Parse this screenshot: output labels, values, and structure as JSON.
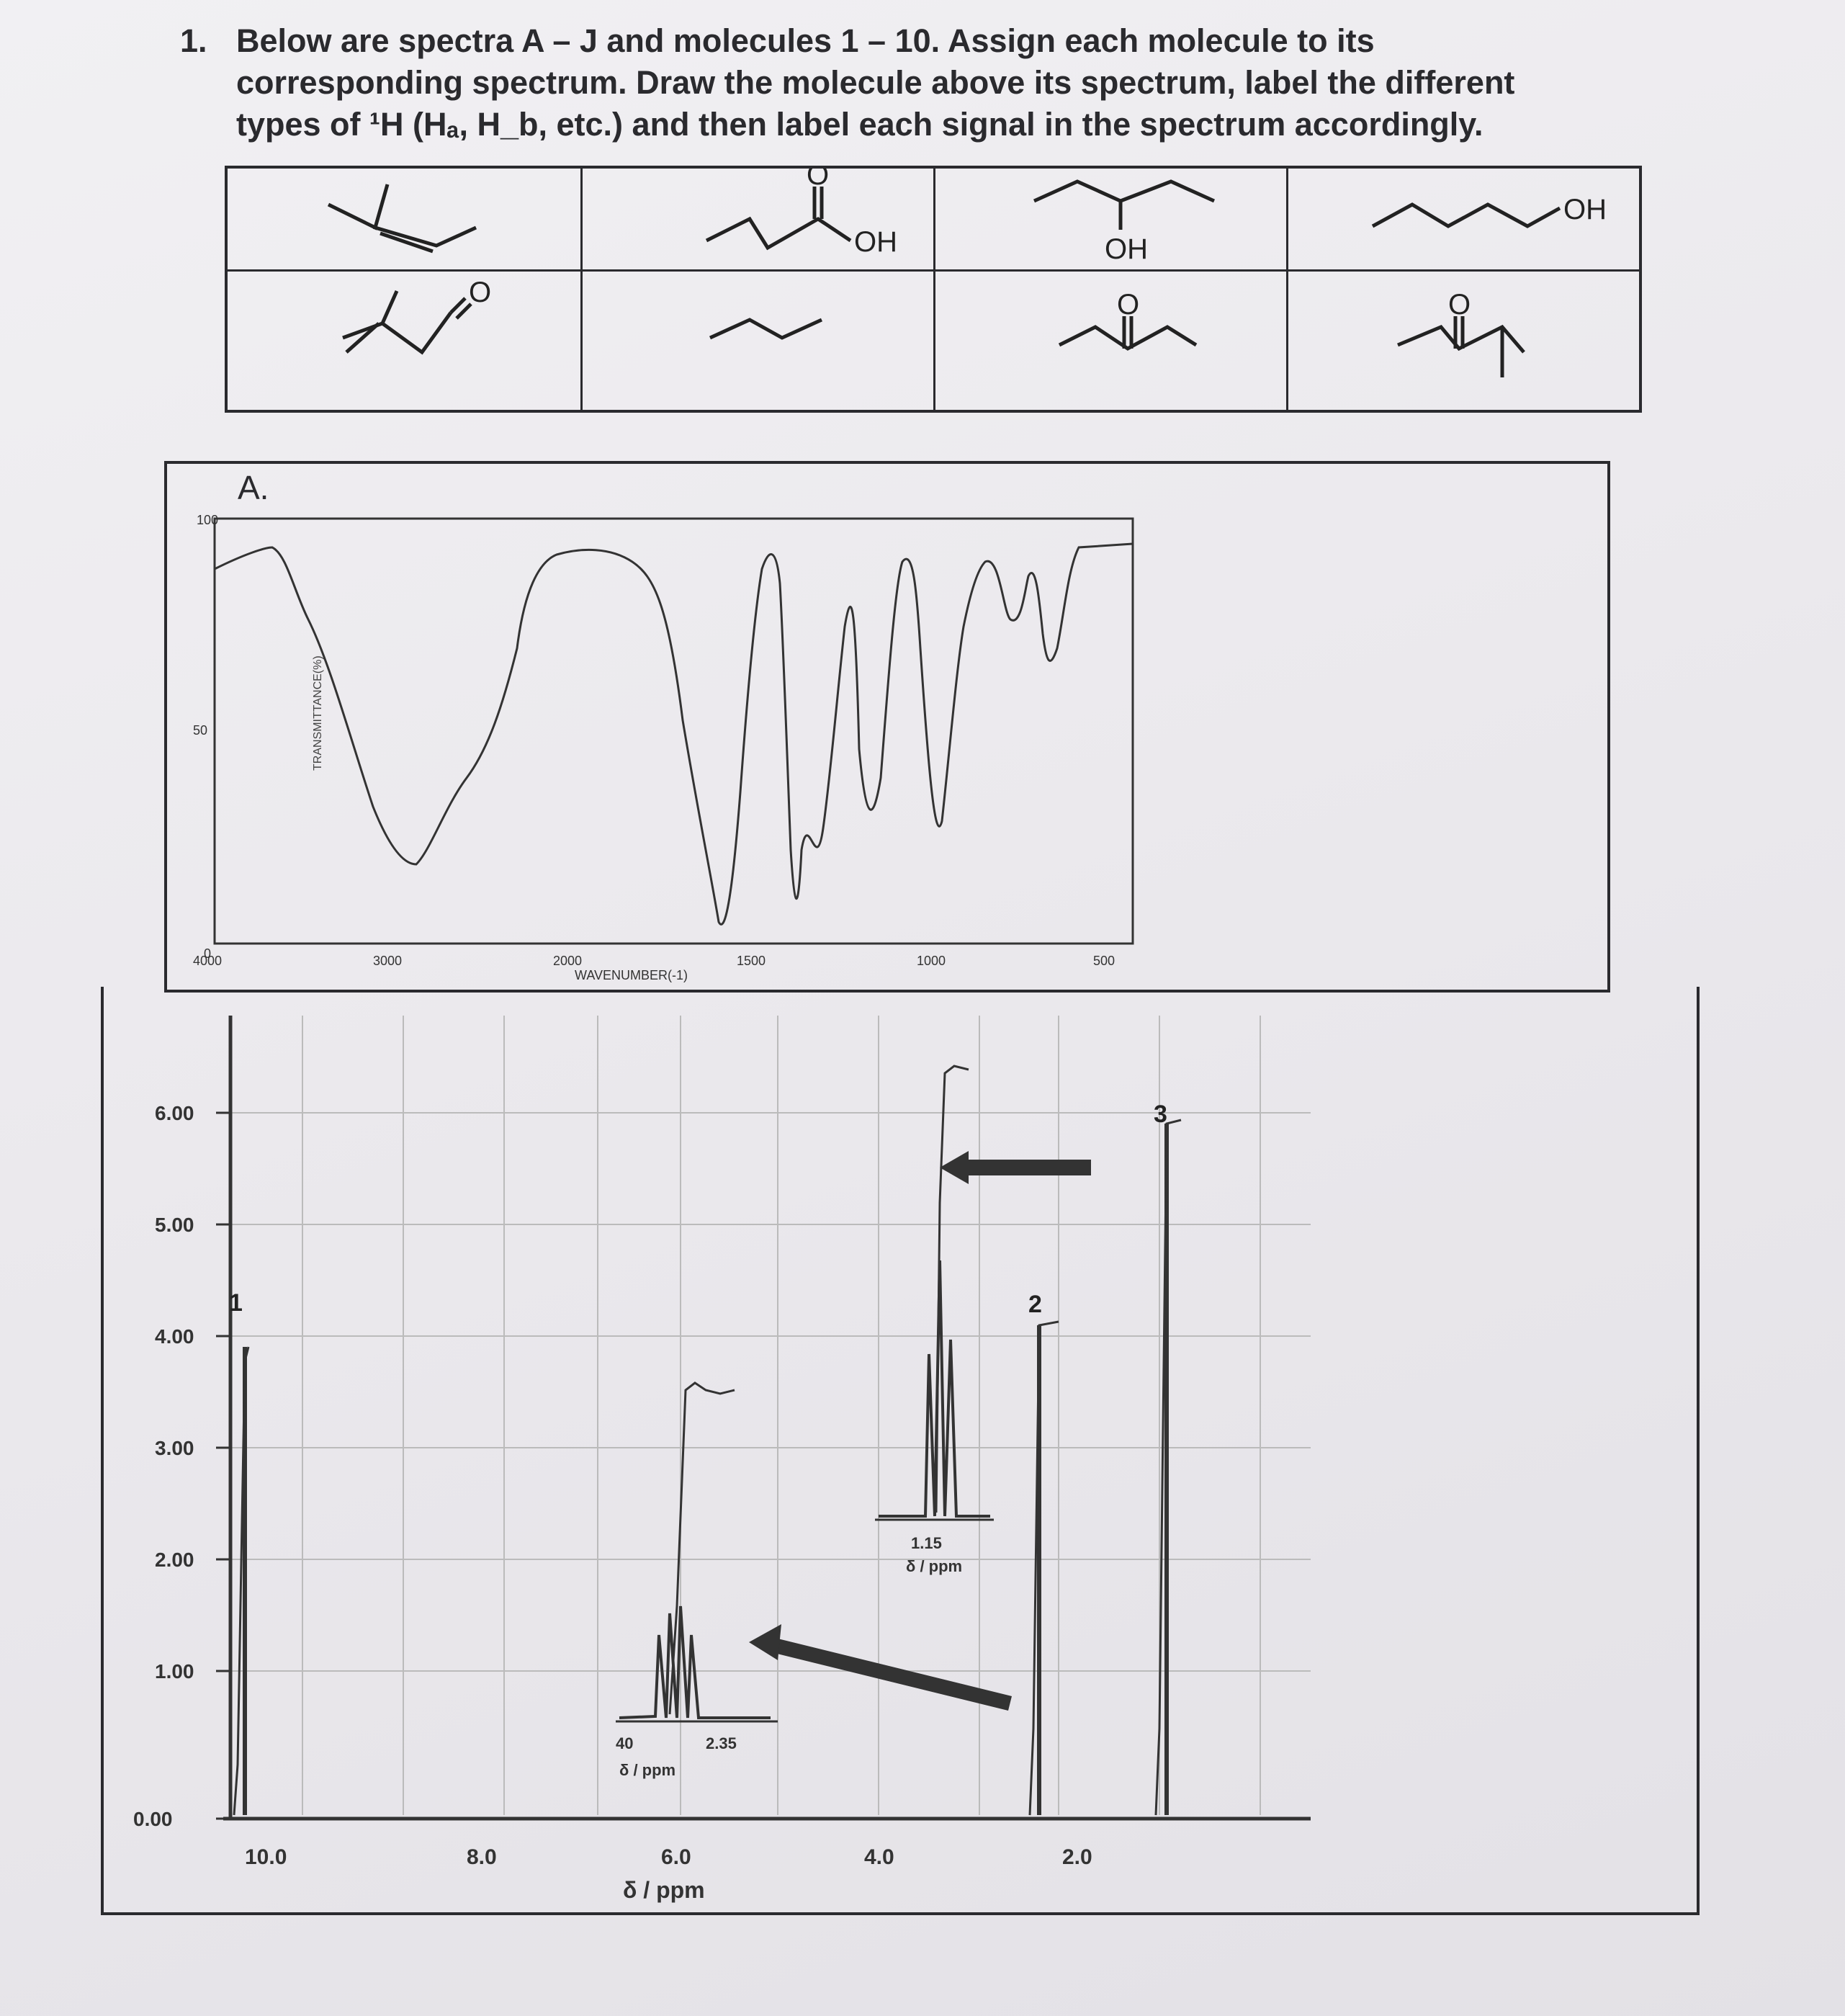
{
  "question": {
    "number": "1.",
    "text": "Below are spectra A – J and molecules 1 – 10. Assign each molecule to its corresponding spectrum. Draw the molecule above its spectrum, label the different types of ¹H (Hₐ, H_b, etc.) and then label each signal in the spectrum accordingly."
  },
  "molecules": {
    "oh_label_1": "OH",
    "oh_label_2": "OH",
    "oh_label_3": "OH",
    "o_label_1": "O",
    "o_label_2": "O",
    "o_label_3": "O",
    "o_label_4": "O"
  },
  "spectrum": {
    "label": "A.",
    "ir": {
      "ylabel": "TRANSMITTANCE(%)",
      "xlabel": "WAVENUMBER(-1)",
      "y_ticks": [
        "100",
        "50",
        "0"
      ],
      "x_ticks": [
        "4000",
        "3000",
        "2000",
        "1500",
        "1000",
        "500"
      ]
    },
    "nmr": {
      "y_ticks": [
        "6.00",
        "5.00",
        "4.00",
        "3.00",
        "2.00",
        "1.00",
        "0.00"
      ],
      "x_ticks": [
        "10.0",
        "8.0",
        "6.0",
        "4.0",
        "2.0"
      ],
      "xlabel": "δ / ppm",
      "integrations": [
        "1",
        "2",
        "3"
      ],
      "inset1_ticks": [
        "40",
        "2.35"
      ],
      "inset1_label": "δ / ppm",
      "inset2_tick": "1.15",
      "inset2_label": "δ / ppm"
    }
  }
}
